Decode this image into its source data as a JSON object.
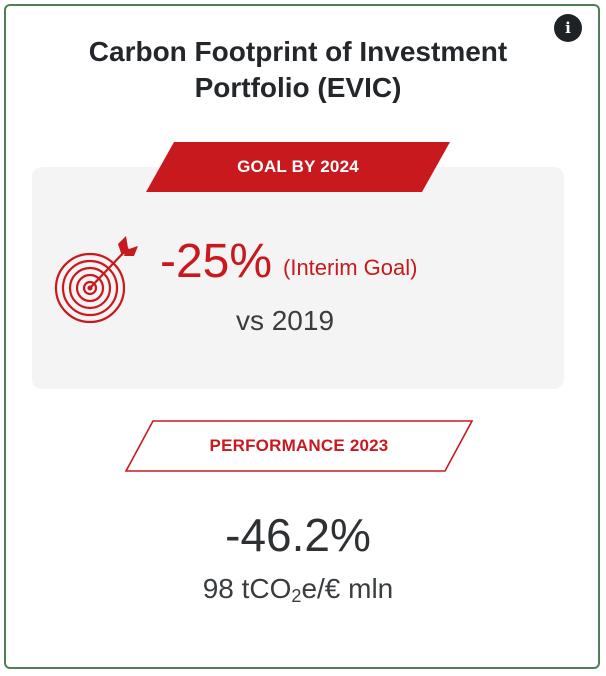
{
  "card": {
    "title": "Carbon Footprint of Investment Portfolio (EVIC)",
    "info_button_label": "i"
  },
  "goal": {
    "banner_label": "GOAL BY 2024",
    "value": "-25%",
    "note": "(Interim Goal)",
    "baseline": "vs 2019",
    "icon": "target-arrow-icon"
  },
  "performance": {
    "banner_label": "PERFORMANCE 2023",
    "value": "-46.2%",
    "unit_prefix": "98 tCO",
    "unit_subscript": "2",
    "unit_suffix": "e/€ mln"
  },
  "colors": {
    "accent_red": "#c8191e",
    "border_green": "#4f7f57",
    "panel_gray": "#f4f4f4",
    "text_dark": "#23272b"
  }
}
